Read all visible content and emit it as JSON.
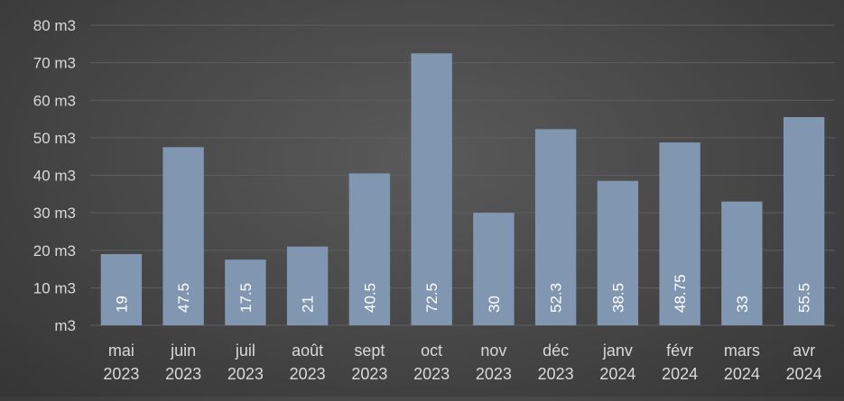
{
  "chart_data": {
    "type": "bar",
    "categories": [
      [
        "mai",
        "2023"
      ],
      [
        "juin",
        "2023"
      ],
      [
        "juil",
        "2023"
      ],
      [
        "août",
        "2023"
      ],
      [
        "sept",
        "2023"
      ],
      [
        "oct",
        "2023"
      ],
      [
        "nov",
        "2023"
      ],
      [
        "déc",
        "2023"
      ],
      [
        "janv",
        "2024"
      ],
      [
        "févr",
        "2024"
      ],
      [
        "mars",
        "2024"
      ],
      [
        "avr",
        "2024"
      ]
    ],
    "values": [
      19,
      47.5,
      17.5,
      21,
      40.5,
      72.5,
      30,
      52.3,
      38.5,
      48.75,
      33,
      55.5
    ],
    "data_labels": [
      "19",
      "47.5",
      "17.5",
      "21",
      "40.5",
      "72.5",
      "30",
      "52.3",
      "38.5",
      "48.75",
      "33",
      "55.5"
    ],
    "y_ticks": [
      0,
      10,
      20,
      30,
      40,
      50,
      60,
      70,
      80
    ],
    "y_tick_labels": [
      "m3",
      "10 m3",
      "20 m3",
      "30 m3",
      "40 m3",
      "50 m3",
      "60 m3",
      "70 m3",
      "80 m3"
    ],
    "ylim": [
      0,
      80
    ],
    "grid": true,
    "legend": "none",
    "colors": {
      "bar": "#8197b1",
      "grid": "#5e5e5e",
      "text": "#d9d9d9",
      "data_label": "#ffffff"
    }
  }
}
